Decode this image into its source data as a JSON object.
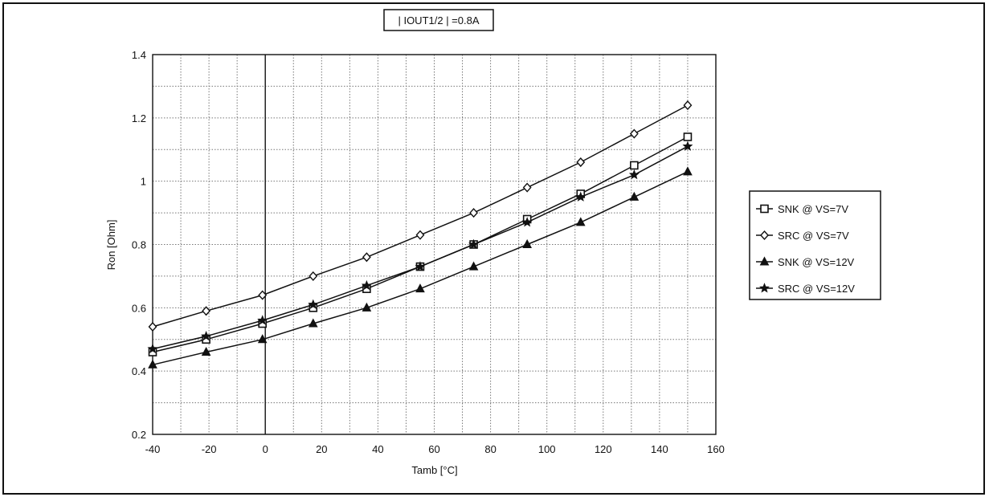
{
  "chart_data": {
    "type": "line",
    "title": "| IOUT1/2 | =0.8A",
    "xlabel": "Tamb [°C]",
    "ylabel": "Ron [Ohm]",
    "xlim": [
      -40,
      160
    ],
    "ylim": [
      0.2,
      1.4
    ],
    "xticks": [
      "-40",
      "-20",
      "0",
      "20",
      "40",
      "60",
      "80",
      "100",
      "120",
      "140",
      "160"
    ],
    "yticks": [
      "0.2",
      "0.4",
      "0.6",
      "0.8",
      "1",
      "1.2",
      "1.4"
    ],
    "grid": true,
    "legend_position": "right",
    "x": [
      -40,
      -21,
      -1,
      17,
      36,
      55,
      74,
      93,
      112,
      131,
      150
    ],
    "series": [
      {
        "name": "SNK @ VS=7V",
        "marker": "square",
        "values": [
          0.46,
          0.5,
          0.55,
          0.6,
          0.66,
          0.73,
          0.8,
          0.88,
          0.96,
          1.05,
          1.14
        ]
      },
      {
        "name": "SRC @ VS=7V",
        "marker": "diamond",
        "values": [
          0.54,
          0.59,
          0.64,
          0.7,
          0.76,
          0.83,
          0.9,
          0.98,
          1.06,
          1.15,
          1.24
        ]
      },
      {
        "name": "SNK @ VS=12V",
        "marker": "triangle",
        "values": [
          0.42,
          0.46,
          0.5,
          0.55,
          0.6,
          0.66,
          0.73,
          0.8,
          0.87,
          0.95,
          1.03
        ]
      },
      {
        "name": "SRC @ VS=12V",
        "marker": "star",
        "values": [
          0.47,
          0.51,
          0.56,
          0.61,
          0.67,
          0.73,
          0.8,
          0.87,
          0.95,
          1.02,
          1.11
        ]
      }
    ]
  }
}
